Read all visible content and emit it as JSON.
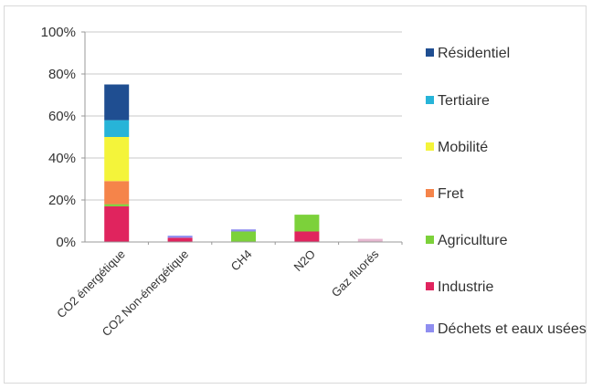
{
  "chart_data": {
    "type": "bar",
    "stacked": true,
    "categories": [
      "CO2 énergétique",
      "CO2 Non-énergétique",
      "CH4",
      "N2O",
      "Gaz fluorés"
    ],
    "ylim": [
      0,
      100
    ],
    "yticks": [
      "0%",
      "20%",
      "40%",
      "60%",
      "80%",
      "100%"
    ],
    "grid": true,
    "legend_position": "right",
    "series": [
      {
        "name": "Industrie",
        "color": "#e0245e",
        "values": [
          17,
          2,
          0,
          5,
          0
        ]
      },
      {
        "name": "Agriculture",
        "color": "#7cd13a",
        "values": [
          1,
          0,
          5,
          8,
          0
        ]
      },
      {
        "name": "Fret",
        "color": "#f5844a",
        "values": [
          11,
          0,
          0,
          0,
          0
        ]
      },
      {
        "name": "Mobilité",
        "color": "#f4f43a",
        "values": [
          21,
          0,
          0,
          0,
          0
        ]
      },
      {
        "name": "Tertiaire",
        "color": "#27b4d8",
        "values": [
          8,
          0,
          0,
          0,
          0
        ]
      },
      {
        "name": "Résidentiel",
        "color": "#1f4e91",
        "values": [
          17,
          0,
          0,
          0,
          0
        ]
      },
      {
        "name": "Déchets et eaux usées",
        "color": "#8f8ef0",
        "values": [
          0,
          1,
          1,
          0,
          0
        ]
      },
      {
        "name": "",
        "color": "#e6b8d0",
        "values": [
          0,
          0,
          0,
          0,
          1.5
        ]
      }
    ],
    "legend": [
      {
        "label": "Résidentiel",
        "color": "#1f4e91"
      },
      {
        "label": "Tertiaire",
        "color": "#27b4d8"
      },
      {
        "label": "Mobilité",
        "color": "#f4f43a"
      },
      {
        "label": "Fret",
        "color": "#f5844a"
      },
      {
        "label": "Agriculture",
        "color": "#7cd13a"
      },
      {
        "label": "Industrie",
        "color": "#e0245e"
      },
      {
        "label": "Déchets et eaux usées",
        "color": "#8f8ef0"
      }
    ]
  }
}
